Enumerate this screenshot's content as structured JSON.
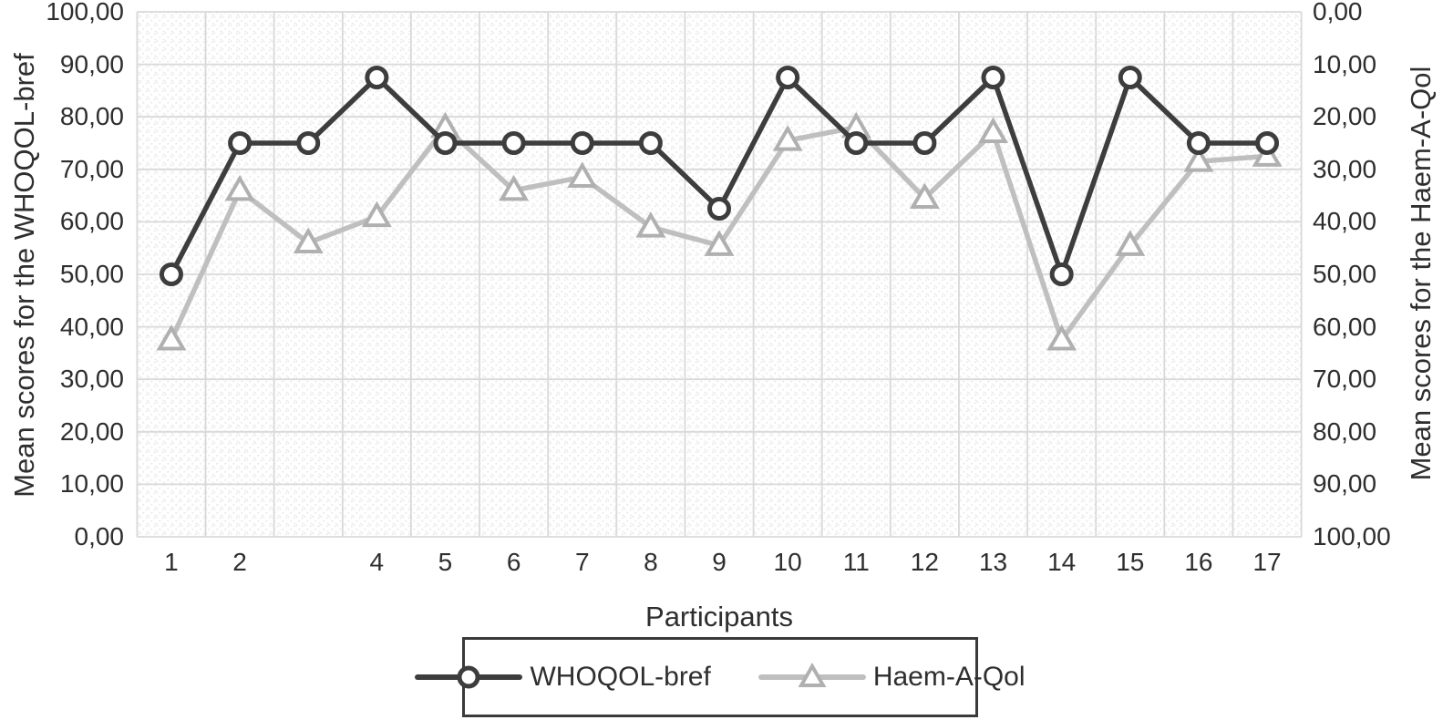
{
  "figure": {
    "x_axis_title": "Participants"
  },
  "colors": {
    "whoqol_line": "#3d3d3d",
    "haem_line": "#bfbfbf",
    "haem_marker_stroke": "#b0b0b0",
    "marker_fill": "#ffffff",
    "gridline": "#d9d9d9",
    "text": "#2e2e2e",
    "legend_border": "#3a3a3a",
    "plot_pattern": "#ebebeb"
  },
  "legend": {
    "items": [
      {
        "label": "WHOQOL-bref",
        "marker": "circle"
      },
      {
        "label": "Haem-A-Qol",
        "marker": "triangle"
      }
    ]
  },
  "chart_data": {
    "type": "line",
    "x": [
      1,
      2,
      3,
      4,
      5,
      6,
      7,
      8,
      9,
      10,
      11,
      12,
      13,
      14,
      15,
      16,
      17
    ],
    "x_tick_labels": [
      "1",
      "2",
      "",
      "4",
      "5",
      "6",
      "7",
      "8",
      "9",
      "10",
      "11",
      "12",
      "13",
      "14",
      "15",
      "16",
      "17"
    ],
    "xlabel": "Participants",
    "grid": true,
    "legend_position": "bottom",
    "left_axis": {
      "label": "Mean scores for the WHOQOL-bref",
      "range": [
        0,
        100
      ],
      "direction": "bottom-up",
      "tick_labels": [
        "100,00",
        "90,00",
        "80,00",
        "70,00",
        "60,00",
        "50,00",
        "40,00",
        "30,00",
        "20,00",
        "10,00",
        "0,00"
      ]
    },
    "right_axis": {
      "label": "Mean scores for the Haem-A-Qol",
      "range": [
        0,
        100
      ],
      "inverted": true,
      "tick_labels": [
        "0,00",
        "10,00",
        "20,00",
        "30,00",
        "40,00",
        "50,00",
        "60,00",
        "70,00",
        "80,00",
        "90,00",
        "100,00"
      ]
    },
    "series": [
      {
        "name": "Haem-A-Qol",
        "axis": "right",
        "marker": "triangle",
        "color": "#bfbfbf",
        "marker_stroke": "#b0b0b0",
        "values": [
          62.5,
          34,
          44,
          39,
          22,
          34,
          31.5,
          41,
          44.5,
          24.5,
          22,
          35.5,
          23,
          62.5,
          44.5,
          28.5,
          27.5
        ]
      },
      {
        "name": "WHOQOL-bref",
        "axis": "left",
        "marker": "circle",
        "color": "#3d3d3d",
        "marker_stroke": "#3d3d3d",
        "values": [
          50,
          75,
          75,
          87.5,
          75,
          75,
          75,
          75,
          62.5,
          87.5,
          75,
          75,
          87.5,
          50,
          87.5,
          75,
          75
        ]
      }
    ]
  }
}
